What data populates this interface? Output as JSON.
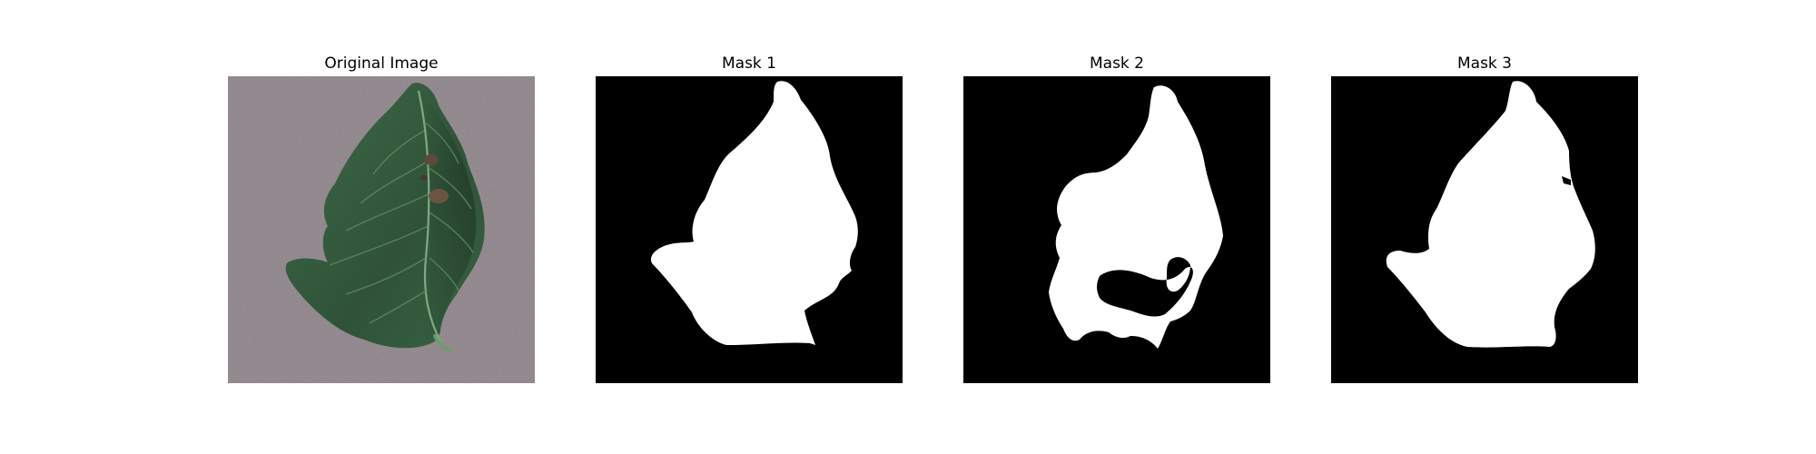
{
  "figure": {
    "panels": [
      {
        "title": "Original Image",
        "kind": "photo"
      },
      {
        "title": "Mask 1",
        "kind": "mask"
      },
      {
        "title": "Mask 2",
        "kind": "mask"
      },
      {
        "title": "Mask 3",
        "kind": "mask"
      }
    ]
  },
  "colors": {
    "background": "#ffffff",
    "mask_background": "#000000",
    "mask_foreground": "#ffffff",
    "surface": "#8a7f86",
    "leaf_dark": "#2f5238",
    "leaf_mid": "#3f6a49",
    "leaf_light": "#5a8a62",
    "vein": "#7fa882",
    "lesion": "#5e4a3a"
  }
}
